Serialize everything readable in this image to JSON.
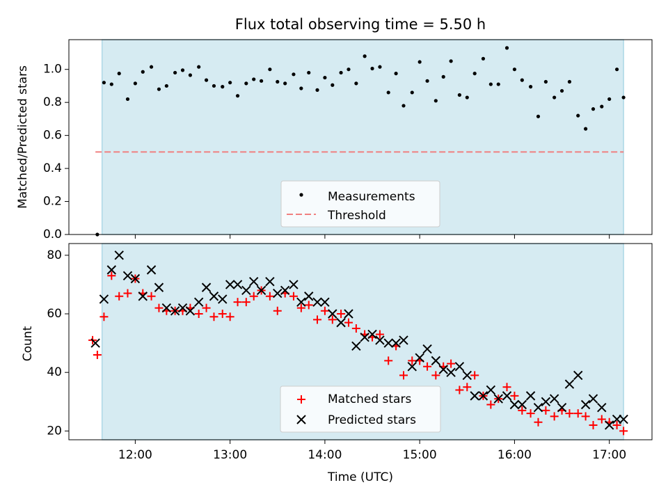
{
  "figure_title": "Flux total observing time = 5.50 h",
  "colors": {
    "observing_band": "#add8e6",
    "measurement": "#000000",
    "threshold": "#f08080",
    "matched": "#ff0000",
    "predicted": "#000000"
  },
  "chart_data": [
    {
      "type": "scatter",
      "panel": "top",
      "title": "Flux total observing time = 5.50 h",
      "xlabel": "",
      "ylabel": "Matched/Predicted stars",
      "xlim_hours": [
        11.3,
        17.45
      ],
      "ylim": [
        0.0,
        1.18
      ],
      "yticks": [
        0.0,
        0.2,
        0.4,
        0.6,
        0.8,
        1.0
      ],
      "ytick_labels": [
        "0.0",
        "0.2",
        "0.4",
        "0.6",
        "0.8",
        "1.0"
      ],
      "observing_window_hours": [
        11.65,
        17.15
      ],
      "legend_position": "lower-center",
      "legend": [
        "Measurements",
        "Threshold"
      ],
      "threshold": 0.5,
      "threshold_range_hours": [
        11.58,
        17.15
      ],
      "x_hours": [
        11.6,
        11.67,
        11.75,
        11.83,
        11.92,
        12.0,
        12.08,
        12.17,
        12.25,
        12.33,
        12.42,
        12.5,
        12.58,
        12.67,
        12.75,
        12.83,
        12.92,
        13.0,
        13.08,
        13.17,
        13.25,
        13.33,
        13.42,
        13.5,
        13.58,
        13.67,
        13.75,
        13.83,
        13.92,
        14.0,
        14.08,
        14.17,
        14.25,
        14.33,
        14.42,
        14.5,
        14.58,
        14.67,
        14.75,
        14.83,
        14.92,
        15.0,
        15.08,
        15.17,
        15.25,
        15.33,
        15.42,
        15.5,
        15.58,
        15.67,
        15.75,
        15.83,
        15.92,
        16.0,
        16.08,
        16.17,
        16.25,
        16.33,
        16.42,
        16.5,
        16.58,
        16.67,
        16.75,
        16.83,
        16.92,
        17.0,
        17.08,
        17.15
      ],
      "values": [
        0.0,
        0.92,
        0.91,
        0.975,
        0.82,
        0.915,
        0.985,
        1.015,
        0.88,
        0.9,
        0.98,
        0.995,
        0.965,
        1.015,
        0.935,
        0.9,
        0.895,
        0.92,
        0.84,
        0.915,
        0.94,
        0.93,
        1.0,
        0.925,
        0.915,
        0.97,
        0.885,
        0.98,
        0.875,
        0.95,
        0.905,
        0.98,
        1.0,
        0.915,
        1.08,
        1.005,
        1.015,
        0.86,
        0.975,
        0.78,
        0.86,
        1.045,
        0.93,
        0.81,
        0.955,
        1.05,
        0.845,
        0.83,
        0.975,
        1.065,
        0.91,
        0.91,
        1.13,
        1.0,
        0.935,
        0.895,
        0.715,
        0.925,
        0.83,
        0.87,
        0.925,
        0.72,
        0.64,
        0.76,
        0.775,
        0.82,
        1.0,
        0.83
      ]
    },
    {
      "type": "scatter",
      "panel": "bottom",
      "title": "",
      "xlabel": "Time (UTC)",
      "ylabel": "Count",
      "xlim_hours": [
        11.3,
        17.45
      ],
      "ylim": [
        17,
        84
      ],
      "xticks_hours": [
        12,
        13,
        14,
        15,
        16,
        17
      ],
      "xtick_labels": [
        "12:00",
        "13:00",
        "14:00",
        "15:00",
        "16:00",
        "17:00"
      ],
      "yticks": [
        20,
        40,
        60,
        80
      ],
      "ytick_labels": [
        "20",
        "40",
        "60",
        "80"
      ],
      "observing_window_hours": [
        11.65,
        17.15
      ],
      "legend_position": "lower-center",
      "legend": [
        "Matched stars",
        "Predicted stars"
      ],
      "series": [
        {
          "name": "Matched stars",
          "marker": "plus",
          "x_hours": [
            11.55,
            11.6,
            11.67,
            11.75,
            11.83,
            11.92,
            12.0,
            12.08,
            12.17,
            12.25,
            12.33,
            12.42,
            12.5,
            12.58,
            12.67,
            12.75,
            12.83,
            12.92,
            13.0,
            13.08,
            13.17,
            13.25,
            13.33,
            13.42,
            13.5,
            13.58,
            13.67,
            13.75,
            13.83,
            13.92,
            14.0,
            14.08,
            14.17,
            14.25,
            14.33,
            14.42,
            14.5,
            14.58,
            14.67,
            14.75,
            14.83,
            14.92,
            15.0,
            15.08,
            15.17,
            15.25,
            15.33,
            15.42,
            15.5,
            15.58,
            15.67,
            15.75,
            15.83,
            15.92,
            16.0,
            16.08,
            16.17,
            16.25,
            16.33,
            16.42,
            16.5,
            16.58,
            16.67,
            16.75,
            16.83,
            16.92,
            17.0,
            17.08,
            17.15
          ],
          "values": [
            51,
            46,
            59,
            73,
            66,
            67,
            72,
            67,
            66,
            62,
            61,
            61,
            61,
            62,
            60,
            62,
            59,
            60,
            59,
            64,
            64,
            66,
            68,
            66,
            61,
            67,
            66,
            62,
            63,
            58,
            61,
            58,
            60,
            57,
            55,
            53,
            52,
            53,
            44,
            49,
            39,
            44,
            44,
            42,
            39,
            42,
            43,
            34,
            35,
            39,
            32,
            29,
            31,
            35,
            32,
            27,
            26,
            23,
            27,
            25,
            27,
            26,
            26,
            25,
            22,
            24,
            23,
            22,
            20
          ]
        },
        {
          "name": "Predicted stars",
          "marker": "cross",
          "x_hours": [
            11.58,
            11.67,
            11.75,
            11.83,
            11.92,
            12.0,
            12.08,
            12.17,
            12.25,
            12.33,
            12.42,
            12.5,
            12.58,
            12.67,
            12.75,
            12.83,
            12.92,
            13.0,
            13.08,
            13.17,
            13.25,
            13.33,
            13.42,
            13.5,
            13.58,
            13.67,
            13.75,
            13.83,
            13.92,
            14.0,
            14.08,
            14.17,
            14.25,
            14.33,
            14.42,
            14.5,
            14.58,
            14.67,
            14.75,
            14.83,
            14.92,
            15.0,
            15.08,
            15.17,
            15.25,
            15.33,
            15.42,
            15.5,
            15.58,
            15.67,
            15.75,
            15.83,
            15.92,
            16.0,
            16.08,
            16.17,
            16.25,
            16.33,
            16.42,
            16.5,
            16.58,
            16.67,
            16.75,
            16.83,
            16.92,
            17.0,
            17.08,
            17.15
          ],
          "values": [
            50,
            65,
            75,
            80,
            73,
            72,
            66,
            75,
            69,
            62,
            61,
            62,
            61,
            64,
            69,
            66,
            65,
            70,
            70,
            68,
            71,
            68,
            71,
            67,
            68,
            70,
            64,
            66,
            64,
            64,
            60,
            57,
            60,
            49,
            52,
            53,
            51,
            50,
            50,
            51,
            42,
            45,
            48,
            44,
            41,
            40,
            42,
            39,
            32,
            32,
            34,
            31,
            32,
            29,
            29,
            32,
            28,
            30,
            31,
            28,
            36,
            39,
            29,
            31,
            28,
            22,
            24,
            24
          ]
        }
      ]
    }
  ]
}
